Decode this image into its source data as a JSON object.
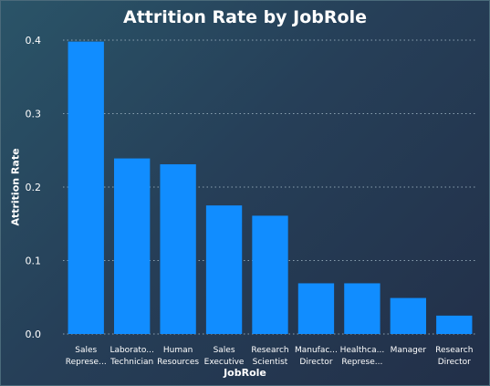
{
  "chart_data": {
    "type": "bar",
    "title": "Attrition Rate by JobRole",
    "xlabel": "JobRole",
    "ylabel": "Attrition Rate",
    "ylim": [
      0,
      0.4
    ],
    "yticks": [
      "0.0",
      "0.1",
      "0.2",
      "0.3",
      "0.4"
    ],
    "grid": true,
    "categories": [
      [
        "Sales",
        "Represe..."
      ],
      [
        "Laborato...",
        "Technician"
      ],
      [
        "Human",
        "Resources"
      ],
      [
        "Sales",
        "Executive"
      ],
      [
        "Research",
        "Scientist"
      ],
      [
        "Manufac...",
        "Director"
      ],
      [
        "Healthca...",
        "Represe..."
      ],
      [
        "Manager"
      ],
      [
        "Research",
        "Director"
      ]
    ],
    "values": [
      0.398,
      0.239,
      0.231,
      0.175,
      0.161,
      0.069,
      0.069,
      0.049,
      0.025
    ],
    "colors": {
      "bar": "#118DFF",
      "grid": "#8aa0b0",
      "text": "#ffffff"
    }
  }
}
